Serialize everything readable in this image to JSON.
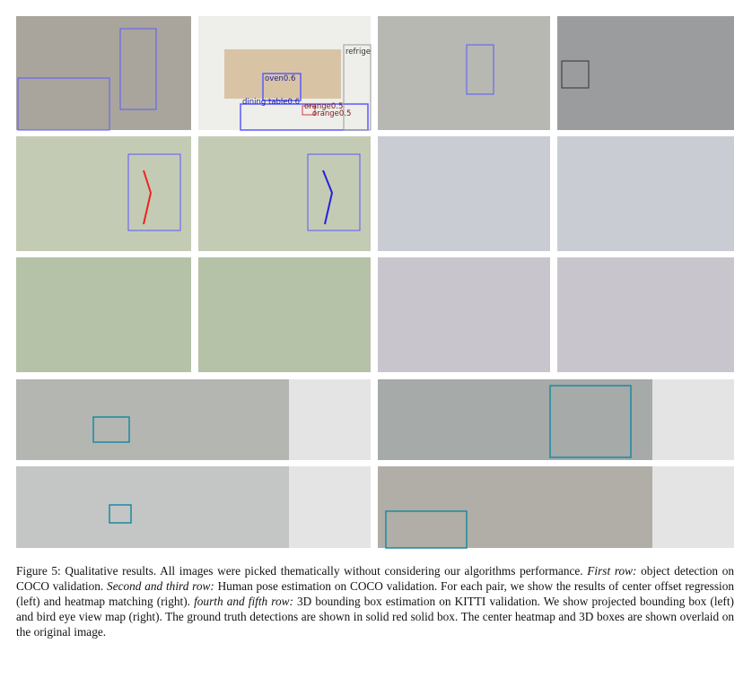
{
  "figure": {
    "detection_labels": [
      "oven0.6",
      "dining table0.6",
      "orange0.5",
      "orange0.5",
      "refrige"
    ],
    "caption": {
      "label": "Figure 5:",
      "segments": [
        " Qualitative results. All images were picked thematically without considering our algorithms performance. ",
        "First row:",
        " object detection on COCO validation. ",
        "Second and third row:",
        " Human pose estimation on COCO validation. For each pair, we show the results of center offset regression (left) and heatmap matching (right). ",
        "fourth and fifth row:",
        " 3D bounding box estimation on KITTI validation. We show projected bounding box (left) and bird eye view map (right). The ground truth detections are shown in solid red solid box. The center heatmap and 3D boxes are shown overlaid on the original image."
      ]
    }
  }
}
